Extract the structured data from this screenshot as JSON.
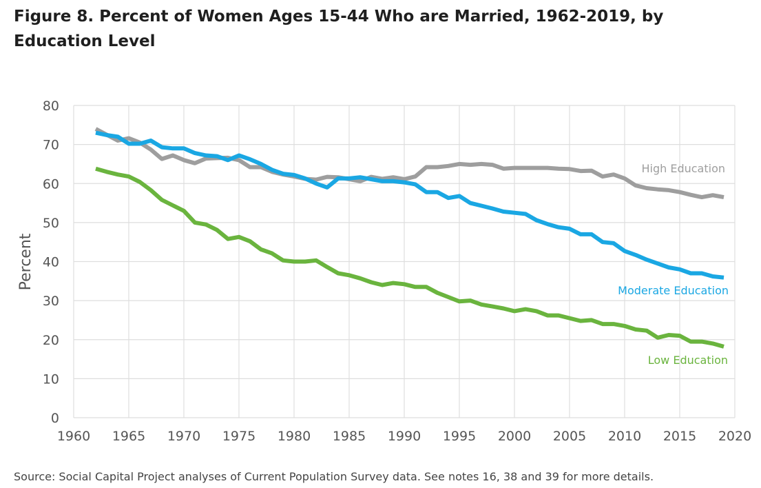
{
  "title": "Figure 8. Percent of Women Ages 15-44 Who are Married, 1962-2019, by Education Level",
  "source": "Source: Social Capital Project analyses of Current Population Survey data. See notes 16, 38 and 39 for more details.",
  "chart_data": {
    "type": "line",
    "title": "Figure 8. Percent of Women Ages 15-44 Who are Married, 1962-2019, by Education Level",
    "xlabel": "",
    "ylabel": "Percent",
    "xlim": [
      1960,
      2020
    ],
    "ylim": [
      0,
      80
    ],
    "xticks": [
      1960,
      1965,
      1970,
      1975,
      1980,
      1985,
      1990,
      1995,
      2000,
      2005,
      2010,
      2015,
      2020
    ],
    "yticks": [
      0,
      10,
      20,
      30,
      40,
      50,
      60,
      70,
      80
    ],
    "grid": true,
    "legend": "inline labels at right end of each line",
    "x": [
      1962,
      1963,
      1964,
      1965,
      1966,
      1967,
      1968,
      1969,
      1970,
      1971,
      1972,
      1973,
      1974,
      1975,
      1976,
      1977,
      1978,
      1979,
      1980,
      1981,
      1982,
      1983,
      1984,
      1985,
      1986,
      1987,
      1988,
      1989,
      1990,
      1991,
      1992,
      1993,
      1994,
      1995,
      1996,
      1997,
      1998,
      1999,
      2000,
      2001,
      2002,
      2003,
      2004,
      2005,
      2006,
      2007,
      2008,
      2009,
      2010,
      2011,
      2012,
      2013,
      2014,
      2015,
      2016,
      2017,
      2018,
      2019
    ],
    "series": [
      {
        "name": "High Education",
        "color": "#9e9e9e",
        "values": [
          74,
          72.5,
          71,
          71.6,
          70.5,
          68.7,
          66.3,
          67.2,
          66,
          65.2,
          66.4,
          66.5,
          66.6,
          66,
          64.2,
          64.2,
          63,
          62.3,
          61.8,
          61.2,
          61,
          61.7,
          61.6,
          61.1,
          60.6,
          61.7,
          61.2,
          61.6,
          61.1,
          61.8,
          64.2,
          64.2,
          64.5,
          65,
          64.8,
          65,
          64.8,
          63.8,
          64,
          64,
          64,
          64,
          63.8,
          63.7,
          63.2,
          63.3,
          61.8,
          62.3,
          61.3,
          59.5,
          58.8,
          58.5,
          58.3,
          57.8,
          57.1,
          56.5,
          57,
          56.5
        ]
      },
      {
        "name": "Moderate Education",
        "color": "#1aa7e3",
        "values": [
          73,
          72.4,
          72,
          70.2,
          70.2,
          71,
          69.3,
          69,
          69,
          67.8,
          67.2,
          67,
          66,
          67.2,
          66.2,
          65,
          63.5,
          62.5,
          62.2,
          61.3,
          60,
          59,
          61.3,
          61.3,
          61.6,
          61.1,
          60.6,
          60.6,
          60.3,
          59.8,
          57.8,
          57.8,
          56.3,
          56.8,
          55,
          54.3,
          53.6,
          52.8,
          52.5,
          52.2,
          50.6,
          49.6,
          48.8,
          48.4,
          47,
          47,
          45,
          44.7,
          42.7,
          41.7,
          40.5,
          39.5,
          38.5,
          38,
          37,
          37,
          36.2,
          35.9
        ]
      },
      {
        "name": "Low Education",
        "color": "#6ab43e",
        "values": [
          63.8,
          63,
          62.3,
          61.8,
          60.4,
          58.3,
          55.8,
          54.4,
          53,
          50,
          49.5,
          48.1,
          45.8,
          46.3,
          45.2,
          43.1,
          42.1,
          40.3,
          40,
          40,
          40.3,
          38.6,
          37,
          36.5,
          35.7,
          34.7,
          34,
          34.5,
          34.2,
          33.5,
          33.5,
          32,
          30.9,
          29.8,
          30,
          29,
          28.5,
          28,
          27.3,
          27.8,
          27.3,
          26.2,
          26.2,
          25.5,
          24.8,
          25,
          24,
          24,
          23.5,
          22.6,
          22.3,
          20.5,
          21.2,
          21,
          19.5,
          19.5,
          19,
          18.2
        ]
      }
    ]
  }
}
